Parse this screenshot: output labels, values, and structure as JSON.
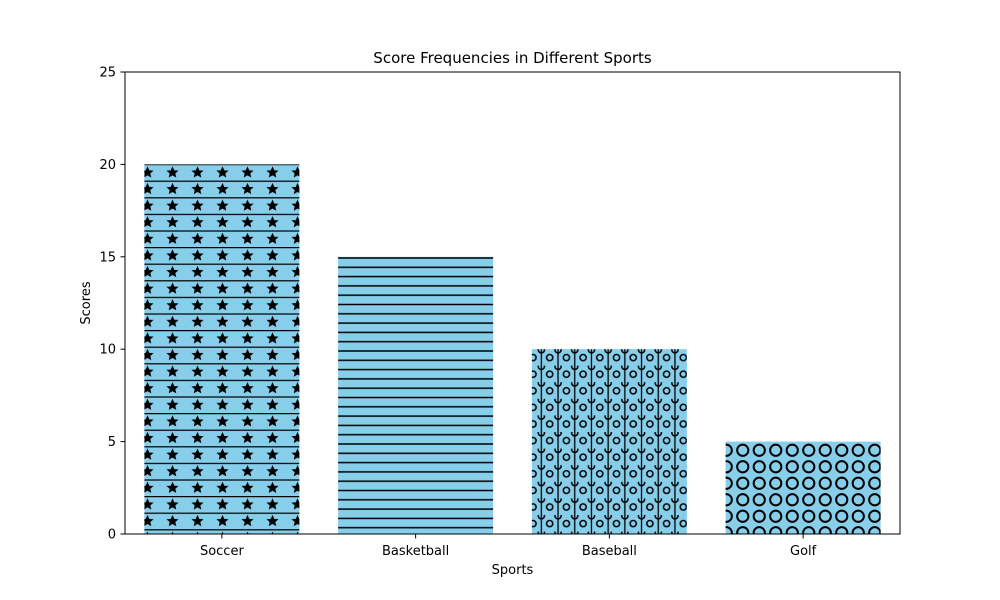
{
  "chart_data": {
    "type": "bar",
    "title": "Score Frequencies in Different Sports",
    "xlabel": "Sports",
    "ylabel": "Scores",
    "categories": [
      "Soccer",
      "Basketball",
      "Baseball",
      "Golf"
    ],
    "values": [
      20,
      15,
      10,
      5
    ],
    "patterns": [
      "stars-and-lines",
      "horizontal-lines",
      "circles-grid",
      "large-circles"
    ],
    "ylim": [
      0,
      25
    ],
    "yticks": [
      0,
      5,
      10,
      15,
      20,
      25
    ],
    "bar_color": "#87ceeb",
    "hatch_color": "#000000",
    "grid": false,
    "legend": "none"
  }
}
